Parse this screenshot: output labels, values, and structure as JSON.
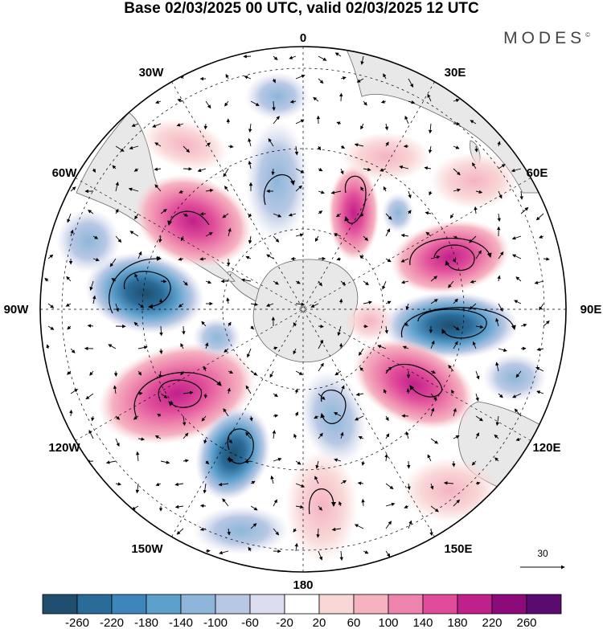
{
  "header": {
    "title": "Base 02/03/2025 00 UTC, valid 02/03/2025 12 UTC",
    "brand": "MODES",
    "brand_mark": "©"
  },
  "map": {
    "projection": "south-polar-stereographic",
    "longitude_labels": [
      "0",
      "30E",
      "60E",
      "90E",
      "120E",
      "150E",
      "180",
      "150W",
      "120W",
      "90W",
      "60W",
      "30W"
    ],
    "reference_vector": {
      "label": "30",
      "units_note": ""
    },
    "colors": {
      "land": "#e8e8e8",
      "coast": "#666666",
      "grid": "#000000"
    }
  },
  "colorbar": {
    "tick_labels": [
      "-260",
      "-220",
      "-180",
      "-140",
      "-100",
      "-60",
      "-20",
      "20",
      "60",
      "100",
      "140",
      "180",
      "220",
      "260"
    ],
    "colors": [
      "#1f4e6e",
      "#2a6b9a",
      "#3d86bd",
      "#5ea0cc",
      "#8db6d9",
      "#b8c8e4",
      "#dcdcef",
      "#ffffff",
      "#f9d7d7",
      "#f5b3c2",
      "#ee84ad",
      "#e04c9a",
      "#c02089",
      "#8c0a7a",
      "#5a0b70"
    ]
  }
}
